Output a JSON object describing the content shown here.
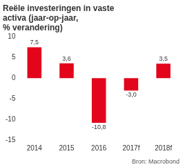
{
  "chart_data": {
    "type": "bar",
    "title": [
      "Reële investeringen in vaste",
      "activa (jaar-op-jaar,",
      "% verandering)"
    ],
    "source": "Bron: Macrobond",
    "categories": [
      "2014",
      "2015",
      "2016",
      "2017f",
      "2018f"
    ],
    "values": [
      7.5,
      3.6,
      -10.8,
      -3.0,
      3.5
    ],
    "value_labels": [
      "7,5",
      "3,6",
      "-10,8",
      "-3,0",
      "3,5"
    ],
    "color": "#e3051b",
    "ylim": [
      -15,
      10
    ],
    "yticks": [
      -15,
      -10,
      -5,
      0,
      5,
      10
    ],
    "grid": false,
    "data_labels": true
  }
}
